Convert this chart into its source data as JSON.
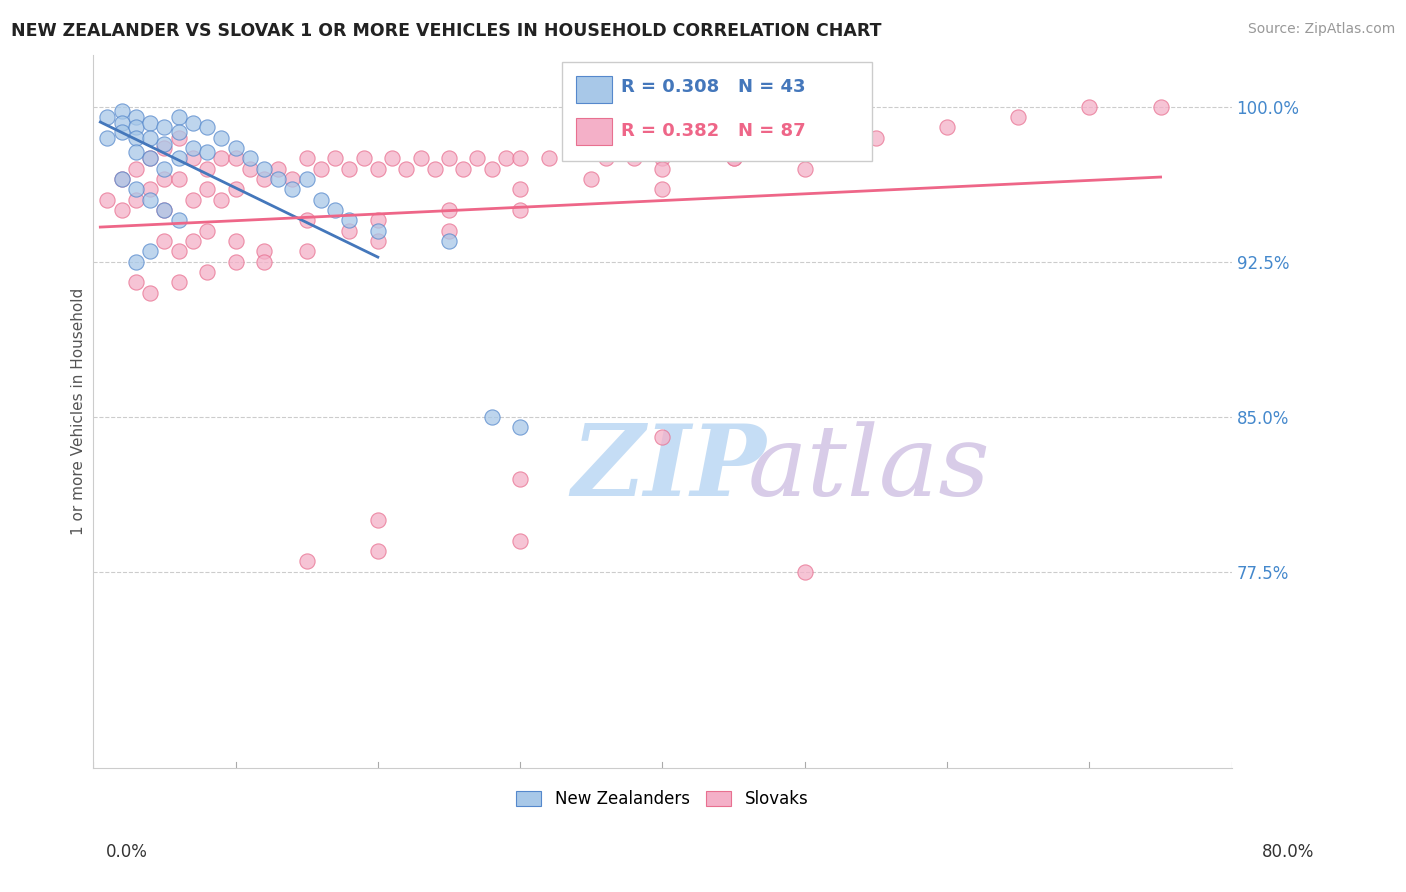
{
  "title": "NEW ZEALANDER VS SLOVAK 1 OR MORE VEHICLES IN HOUSEHOLD CORRELATION CHART",
  "source": "Source: ZipAtlas.com",
  "ylabel": "1 or more Vehicles in Household",
  "ytick_vals": [
    77.5,
    85.0,
    92.5,
    100.0
  ],
  "ytick_labels": [
    "77.5%",
    "85.0%",
    "92.5%",
    "100.0%"
  ],
  "xmin": 0.0,
  "xmax": 80.0,
  "ymin": 68.0,
  "ymax": 102.5,
  "nz_R": 0.308,
  "nz_N": 43,
  "sk_R": 0.382,
  "sk_N": 87,
  "nz_color": "#a8c8e8",
  "sk_color": "#f4b0c8",
  "nz_edge": "#5588cc",
  "sk_edge": "#e87090",
  "trend_nz_color": "#4477bb",
  "trend_sk_color": "#ee6688",
  "watermark_zip_color": "#c8ddf0",
  "watermark_atlas_color": "#d8c8e8",
  "legend_nz_fill": "#a8c8e8",
  "legend_sk_fill": "#f4b0c8",
  "nz_scatter_x": [
    1,
    1,
    2,
    2,
    2,
    3,
    3,
    3,
    3,
    4,
    4,
    4,
    5,
    5,
    5,
    6,
    6,
    6,
    7,
    7,
    8,
    8,
    9,
    10,
    11,
    12,
    13,
    14,
    15,
    16,
    17,
    18,
    20,
    25,
    28,
    30,
    2,
    3,
    4,
    5,
    6,
    4,
    3
  ],
  "nz_scatter_y": [
    99.5,
    98.5,
    99.8,
    99.2,
    98.8,
    99.5,
    99.0,
    98.5,
    97.8,
    99.2,
    98.5,
    97.5,
    99.0,
    98.2,
    97.0,
    99.5,
    98.8,
    97.5,
    99.2,
    98.0,
    99.0,
    97.8,
    98.5,
    98.0,
    97.5,
    97.0,
    96.5,
    96.0,
    96.5,
    95.5,
    95.0,
    94.5,
    94.0,
    93.5,
    85.0,
    84.5,
    96.5,
    96.0,
    95.5,
    95.0,
    94.5,
    93.0,
    92.5
  ],
  "sk_scatter_x": [
    1,
    2,
    2,
    3,
    3,
    4,
    4,
    5,
    5,
    5,
    6,
    6,
    7,
    7,
    8,
    8,
    9,
    9,
    10,
    10,
    11,
    12,
    13,
    14,
    15,
    16,
    17,
    18,
    19,
    20,
    21,
    22,
    23,
    24,
    25,
    26,
    27,
    28,
    29,
    30,
    32,
    34,
    36,
    38,
    40,
    42,
    45,
    50,
    55,
    60,
    65,
    70,
    75,
    5,
    6,
    7,
    8,
    10,
    12,
    15,
    18,
    20,
    25,
    30,
    35,
    40,
    45,
    50,
    10,
    15,
    20,
    25,
    30,
    40,
    50,
    3,
    4,
    6,
    8,
    12,
    20,
    30,
    40,
    50,
    30,
    20,
    15
  ],
  "sk_scatter_y": [
    95.5,
    96.5,
    95.0,
    97.0,
    95.5,
    97.5,
    96.0,
    98.0,
    96.5,
    95.0,
    98.5,
    96.5,
    97.5,
    95.5,
    97.0,
    96.0,
    97.5,
    95.5,
    97.5,
    96.0,
    97.0,
    96.5,
    97.0,
    96.5,
    97.5,
    97.0,
    97.5,
    97.0,
    97.5,
    97.0,
    97.5,
    97.0,
    97.5,
    97.0,
    97.5,
    97.0,
    97.5,
    97.0,
    97.5,
    97.5,
    97.5,
    98.0,
    97.5,
    97.5,
    97.5,
    98.0,
    97.5,
    98.0,
    98.5,
    99.0,
    99.5,
    100.0,
    100.0,
    93.5,
    93.0,
    93.5,
    94.0,
    93.5,
    93.0,
    94.5,
    94.0,
    94.5,
    95.0,
    96.0,
    96.5,
    97.0,
    97.5,
    98.5,
    92.5,
    93.0,
    93.5,
    94.0,
    95.0,
    96.0,
    97.0,
    91.5,
    91.0,
    91.5,
    92.0,
    92.5,
    80.0,
    82.0,
    84.0,
    77.5,
    79.0,
    78.5,
    78.0
  ]
}
